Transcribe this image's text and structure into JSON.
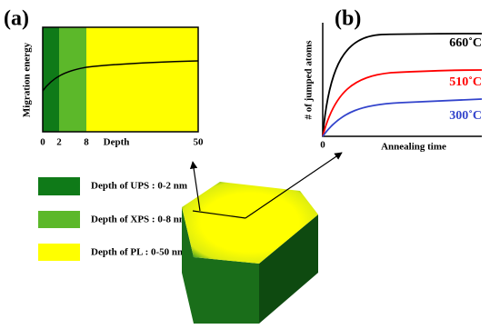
{
  "panel_a": {
    "label": "(a)",
    "y_axis_title": "Migration energy",
    "x_axis_title": "Depth",
    "x_ticks": [
      0,
      2,
      8,
      50
    ]
  },
  "panel_b": {
    "label": "(b)",
    "y_axis_title": "# of jumped atoms",
    "x_axis_title": "Annealing time",
    "x_tick": 0,
    "curves": [
      {
        "label": "660˚C",
        "color": "#000000"
      },
      {
        "label": "510˚C",
        "color": "#ff0000"
      },
      {
        "label": "300˚C",
        "color": "#3344cc"
      }
    ]
  },
  "legend": [
    {
      "text": "Depth of UPS : 0-2 nm",
      "color": "#0f7a18"
    },
    {
      "text": "Depth of XPS : 0-8 nm",
      "color": "#5cb82a"
    },
    {
      "text": "Depth of PL : 0-50 nm",
      "color": "#ffff00"
    }
  ]
}
